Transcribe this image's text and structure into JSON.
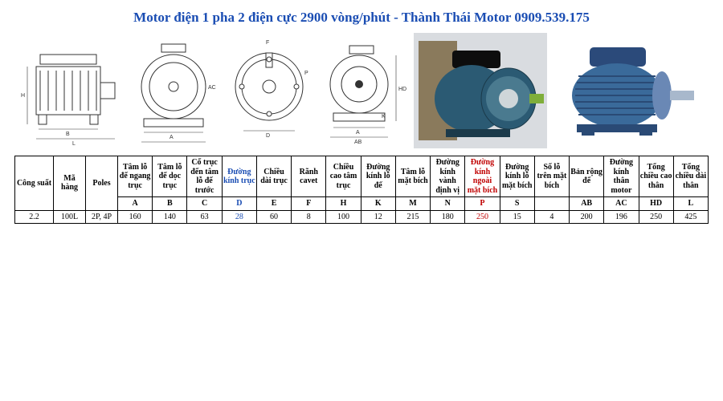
{
  "title": {
    "text": "Motor điện 1 pha 2 điện cực 2900 vòng/phút - Thành Thái Motor 0909.539.175",
    "color": "#1a4db3"
  },
  "highlight_colors": {
    "blue": "#1a4db3",
    "red": "#c00000"
  },
  "header": {
    "row1": [
      {
        "t": "Công suất",
        "rs": 2
      },
      {
        "t": "Mã hàng",
        "rs": 2
      },
      {
        "t": "Poles",
        "rs": 2
      },
      {
        "t": "Tâm lỗ đế ngang trục",
        "b": true
      },
      {
        "t": "Tâm lỗ đế dọc trục"
      },
      {
        "t": "Cổ trục đến tâm lỗ đế trước"
      },
      {
        "t": "Đường kính trục",
        "c": "blue"
      },
      {
        "t": "Chiều dài trục"
      },
      {
        "t": "Rãnh cavet"
      },
      {
        "t": "Chiều cao tâm trục"
      },
      {
        "t": "Đường kính lỗ đế"
      },
      {
        "t": "Tâm lỗ mặt bích"
      },
      {
        "t": "Đường kính vành định vị"
      },
      {
        "t": "Đường kính ngoài mặt bích",
        "c": "red"
      },
      {
        "t": "Đường kính lỗ mặt bích"
      },
      {
        "t": "Số lỗ trên mặt bích"
      },
      {
        "t": "Bản rộng đế"
      },
      {
        "t": "Đường kính thân motor"
      },
      {
        "t": "Tổng chiều cao thân"
      },
      {
        "t": "Tổng chiều dài thân"
      }
    ],
    "row2": [
      {
        "t": "A",
        "b": true
      },
      {
        "t": "B",
        "b": true
      },
      {
        "t": "C",
        "b": true
      },
      {
        "t": "D",
        "b": true,
        "c": "blue"
      },
      {
        "t": "E",
        "b": true
      },
      {
        "t": "F",
        "b": true
      },
      {
        "t": "H",
        "b": true
      },
      {
        "t": "K",
        "b": true
      },
      {
        "t": "M",
        "b": true
      },
      {
        "t": "N",
        "b": true
      },
      {
        "t": "P",
        "b": true,
        "c": "red"
      },
      {
        "t": "S",
        "b": true
      },
      {
        "t": "",
        "b": true
      },
      {
        "t": "AB",
        "b": true
      },
      {
        "t": "AC",
        "b": true
      },
      {
        "t": "HD",
        "b": true
      },
      {
        "t": "L",
        "b": true
      }
    ]
  },
  "rows": [
    {
      "power": "2.2",
      "code": "100L",
      "poles": "2P, 4P",
      "cells": [
        "160",
        "140",
        "63",
        {
          "t": "28",
          "c": "blue"
        },
        "60",
        "8",
        "100",
        "12",
        "215",
        "180",
        {
          "t": "250",
          "c": "red"
        },
        "15",
        "4",
        "200",
        "196",
        "250",
        "425"
      ]
    }
  ]
}
